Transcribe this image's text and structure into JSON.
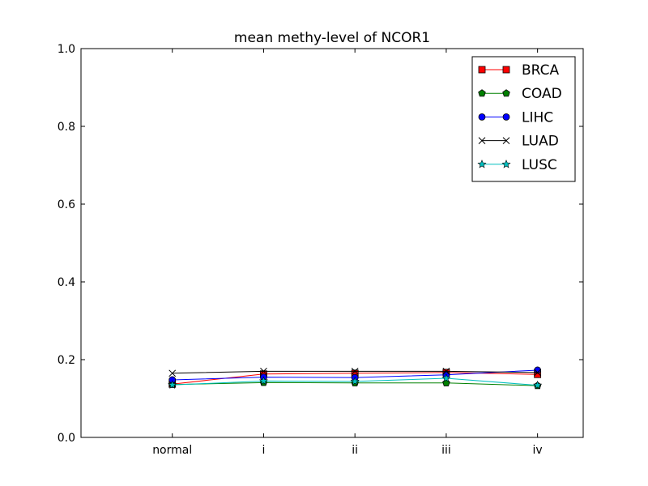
{
  "chart_data": {
    "type": "line",
    "title": "mean methy-level of NCOR1",
    "xlabel": "",
    "ylabel": "",
    "categories": [
      "normal",
      "i",
      "ii",
      "iii",
      "iv"
    ],
    "xlim": [
      -1,
      4.5
    ],
    "ylim": [
      0.0,
      1.0
    ],
    "yticks": [
      0.0,
      0.2,
      0.4,
      0.6,
      0.8,
      1.0
    ],
    "ytick_labels": [
      "0.0",
      "0.2",
      "0.4",
      "0.6",
      "0.8",
      "1.0"
    ],
    "grid": false,
    "legend_position": "top-right",
    "series": [
      {
        "name": "BRCA",
        "color": "#ff0000",
        "marker": "square",
        "values": [
          0.137,
          0.163,
          0.165,
          0.167,
          0.162
        ]
      },
      {
        "name": "COAD",
        "color": "#008000",
        "marker": "pentagon",
        "values": [
          0.136,
          0.141,
          0.14,
          0.14,
          0.133
        ]
      },
      {
        "name": "LIHC",
        "color": "#0000ff",
        "marker": "circle",
        "values": [
          0.148,
          0.155,
          0.154,
          0.161,
          0.173
        ]
      },
      {
        "name": "LUAD",
        "color": "#000000",
        "marker": "x",
        "values": [
          0.165,
          0.17,
          0.17,
          0.17,
          0.167
        ]
      },
      {
        "name": "LUSC",
        "color": "#00bfbf",
        "marker": "star",
        "values": [
          0.135,
          0.145,
          0.144,
          0.152,
          0.134
        ]
      }
    ]
  }
}
